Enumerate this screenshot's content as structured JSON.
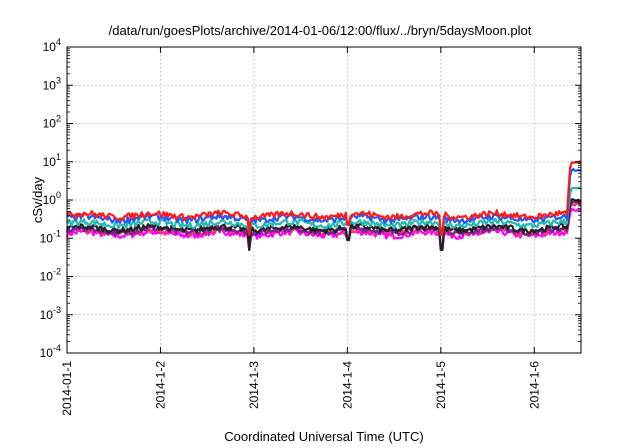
{
  "chart_data": {
    "type": "line",
    "title": "/data/run/goesPlots/archive/2014-01-06/12:00/flux/../bryn/5daysMoon.plot",
    "xlabel": "Coordinated Universal Time (UTC)",
    "ylabel": "cSv/day",
    "xscale": "time",
    "xlim": [
      "2014-01-01T00:00",
      "2014-01-06T12:00"
    ],
    "x_ticks": [
      "2014-01-1",
      "2014-1-2",
      "2014-1-3",
      "2014-1-4",
      "2014-1-5",
      "2014-1-6"
    ],
    "x_tick_dates": [
      "2014-01-01",
      "2014-01-02",
      "2014-01-03",
      "2014-01-04",
      "2014-01-05",
      "2014-01-06"
    ],
    "yscale": "log",
    "ylim": [
      0.0001,
      10000
    ],
    "y_tick_exponents": [
      -4,
      -3,
      -2,
      -1,
      0,
      1,
      2,
      3,
      4
    ],
    "y_tick_base": "10",
    "grid": true,
    "series": [
      {
        "color": "#ff1a1a",
        "baseline": 0.4,
        "step_at": "2014-01-06T08:24",
        "end_value": 9.5
      },
      {
        "color": "#1a5cff",
        "baseline": 0.33,
        "step_at": "2014-01-06T08:24",
        "end_value": 6.2
      },
      {
        "color": "#22bbb0",
        "baseline": 0.24,
        "step_at": "2014-01-06T08:24",
        "end_value": 2.0
      },
      {
        "color": "#222222",
        "baseline": 0.18,
        "step_at": "2014-01-06T08:24",
        "end_value": 1.0
      },
      {
        "color": "#7a1fa2",
        "baseline": 0.16,
        "step_at": "2014-01-06T08:24",
        "end_value": 0.85
      },
      {
        "color": "#ff2d6e",
        "baseline": 0.15,
        "step_at": "2014-01-06T08:24",
        "end_value": 0.75
      },
      {
        "color": "#ff00ff",
        "baseline": 0.13,
        "step_at": "2014-01-06T08:24",
        "end_value": 0.55
      }
    ],
    "dips": [
      {
        "x": "2014-01-02T22:50",
        "value": 0.05
      },
      {
        "x": "2014-01-05T00:10",
        "value": 0.05
      },
      {
        "x": "2014-01-04T00:10",
        "value": 0.09
      }
    ]
  }
}
